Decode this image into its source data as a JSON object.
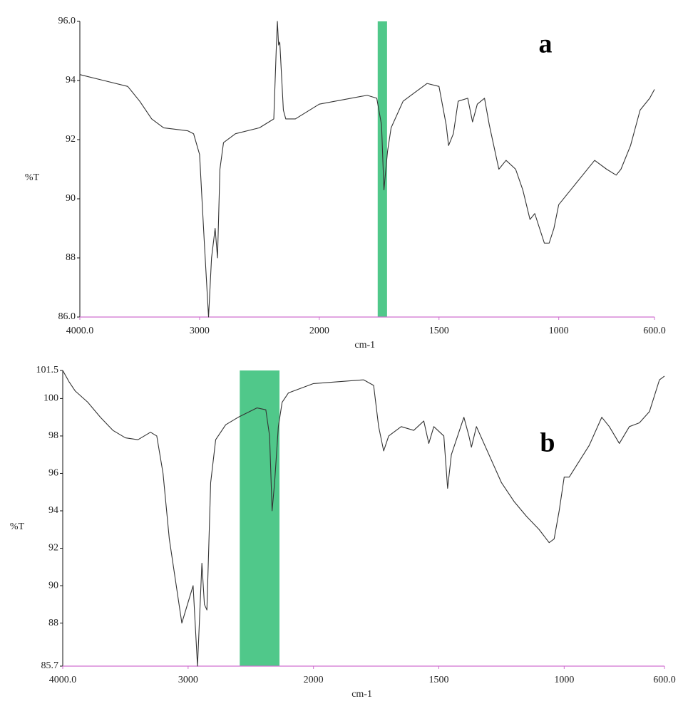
{
  "chart_data": [
    {
      "type": "line",
      "ylabel": "%T",
      "xlabel": "cm-1",
      "annotation": "a",
      "color": "#333333",
      "axis_color": "#d070d0",
      "xlim": [
        4000,
        600
      ],
      "xscale": {
        "break": 2000,
        "expansion": 2
      },
      "xticks": [
        {
          "value": 4000,
          "label": "4000.0"
        },
        3000,
        2000,
        1500,
        1000,
        {
          "value": 600,
          "label": "600.0"
        }
      ],
      "ylim": [
        86,
        96
      ],
      "yticks": [
        {
          "value": 86,
          "label": "86.0"
        },
        88,
        90,
        92,
        94,
        {
          "value": 96,
          "label": "96.0"
        }
      ],
      "highlight": {
        "from": 1756,
        "to": 1717,
        "color": "#50c88a"
      },
      "x": [
        4000,
        3800,
        3600,
        3500,
        3400,
        3300,
        3100,
        3050,
        3000,
        2960,
        2925,
        2900,
        2870,
        2850,
        2830,
        2800,
        2700,
        2500,
        2380,
        2360,
        2350,
        2340,
        2330,
        2300,
        2280,
        2200,
        2000,
        1800,
        1760,
        1740,
        1730,
        1715,
        1700,
        1650,
        1600,
        1550,
        1500,
        1470,
        1460,
        1440,
        1420,
        1380,
        1360,
        1340,
        1310,
        1290,
        1250,
        1220,
        1180,
        1150,
        1120,
        1100,
        1080,
        1060,
        1040,
        1020,
        1000,
        950,
        900,
        850,
        800,
        760,
        740,
        700,
        660,
        620,
        600
      ],
      "values": [
        94.2,
        94.0,
        93.8,
        93.3,
        92.7,
        92.4,
        92.3,
        92.2,
        91.5,
        88.5,
        86.0,
        88.0,
        89.0,
        88.0,
        91.0,
        91.9,
        92.2,
        92.4,
        92.7,
        95.0,
        96.0,
        95.2,
        95.3,
        93.0,
        92.7,
        92.7,
        93.2,
        93.5,
        93.4,
        92.5,
        90.3,
        91.6,
        92.4,
        93.3,
        93.6,
        93.9,
        93.8,
        92.5,
        91.8,
        92.2,
        93.3,
        93.4,
        92.6,
        93.2,
        93.4,
        92.5,
        91.0,
        91.3,
        91.0,
        90.3,
        89.3,
        89.5,
        89.0,
        88.5,
        88.5,
        89.0,
        89.8,
        90.3,
        90.8,
        91.3,
        91.0,
        90.8,
        91.0,
        91.8,
        93.0,
        93.4,
        93.7
      ]
    },
    {
      "type": "line",
      "ylabel": "%T",
      "xlabel": "cm-1",
      "annotation": "b",
      "color": "#333333",
      "axis_color": "#d070d0",
      "xlim": [
        4000,
        600
      ],
      "xscale": {
        "break": 2000,
        "expansion": 2
      },
      "xticks": [
        {
          "value": 4000,
          "label": "4000.0"
        },
        3000,
        2000,
        1500,
        1000,
        {
          "value": 600,
          "label": "600.0"
        }
      ],
      "ylim": [
        85.7,
        101.5
      ],
      "yticks": [
        {
          "value": 85.7,
          "label": "85.7"
        },
        88,
        90,
        92,
        94,
        96,
        98,
        100,
        {
          "value": 101.5,
          "label": "101.5"
        }
      ],
      "highlight": {
        "from": 2588,
        "to": 2271,
        "color": "#50c88a"
      },
      "x": [
        4000,
        3950,
        3900,
        3800,
        3700,
        3600,
        3500,
        3400,
        3300,
        3250,
        3200,
        3150,
        3050,
        2960,
        2925,
        2890,
        2870,
        2850,
        2820,
        2780,
        2700,
        2600,
        2450,
        2380,
        2350,
        2330,
        2310,
        2280,
        2250,
        2200,
        2000,
        1800,
        1760,
        1740,
        1720,
        1700,
        1650,
        1600,
        1560,
        1540,
        1520,
        1480,
        1465,
        1450,
        1420,
        1400,
        1380,
        1370,
        1350,
        1300,
        1250,
        1200,
        1150,
        1100,
        1060,
        1040,
        1020,
        1000,
        980,
        900,
        850,
        820,
        780,
        740,
        700,
        660,
        620,
        600
      ],
      "values": [
        101.5,
        100.9,
        100.4,
        99.8,
        99.0,
        98.3,
        97.9,
        97.8,
        98.2,
        98.0,
        96.0,
        92.5,
        88.0,
        90.0,
        85.7,
        91.2,
        89.0,
        88.7,
        95.5,
        97.8,
        98.6,
        99.0,
        99.5,
        99.4,
        98.0,
        94.0,
        95.5,
        98.5,
        99.8,
        100.3,
        100.8,
        101.0,
        100.7,
        98.5,
        97.2,
        98.0,
        98.5,
        98.3,
        98.8,
        97.6,
        98.5,
        98.0,
        95.2,
        97.0,
        98.2,
        99.0,
        98.0,
        97.4,
        98.5,
        97.0,
        95.5,
        94.5,
        93.7,
        93.0,
        92.3,
        92.5,
        94.0,
        95.8,
        95.8,
        97.5,
        99.0,
        98.5,
        97.6,
        98.5,
        98.7,
        99.3,
        101.0,
        101.2
      ]
    }
  ]
}
